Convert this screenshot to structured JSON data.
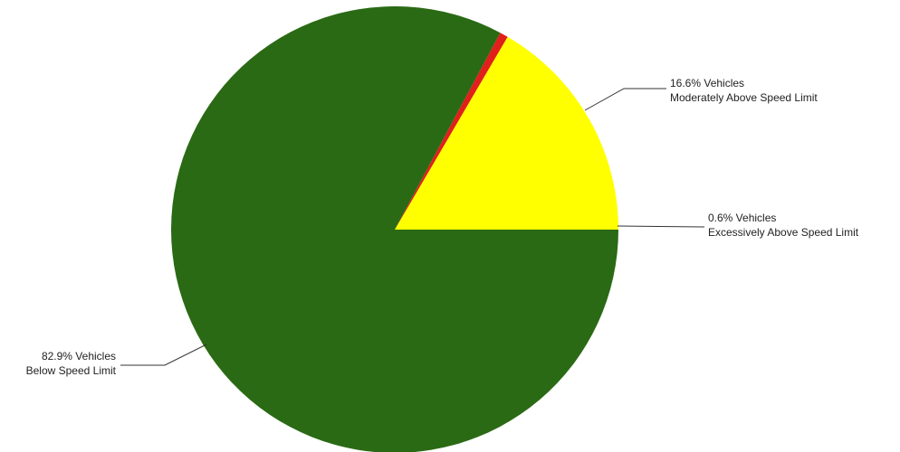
{
  "chart_data": {
    "type": "pie",
    "slices": [
      {
        "value": 16.6,
        "color": "#ffff00",
        "label_line1": "16.6%  Vehicles",
        "label_line2": "Moderately Above Speed Limit"
      },
      {
        "value": 0.6,
        "color": "#e0201a",
        "label_line1": "0.6%  Vehicles",
        "label_line2": "Excessively Above Speed Limit"
      },
      {
        "value": 82.9,
        "color": "#2a6a14",
        "label_line1": "82.9%  Vehicles",
        "label_line2": "Below Speed Limit"
      }
    ],
    "start_angle_deg": 0,
    "direction": "counterclockwise"
  }
}
